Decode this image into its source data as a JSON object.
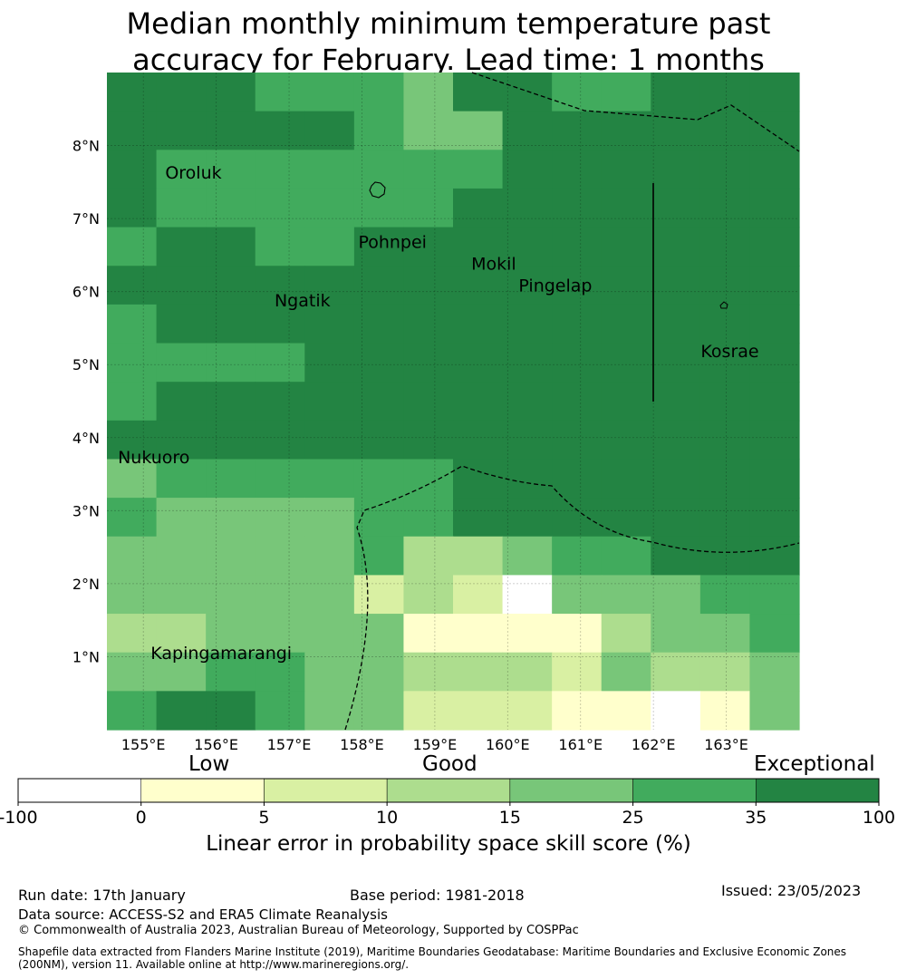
{
  "title": {
    "line1": "Median monthly minimum temperature past",
    "line2": "accuracy for February. Lead time: 1 months"
  },
  "map": {
    "lon_min": 154.5,
    "lon_max": 164.0,
    "lat_min": 0.0,
    "lat_max": 9.0,
    "lon_ticks": [
      {
        "v": 155,
        "label": "155°E"
      },
      {
        "v": 156,
        "label": "156°E"
      },
      {
        "v": 157,
        "label": "157°E"
      },
      {
        "v": 158,
        "label": "158°E"
      },
      {
        "v": 159,
        "label": "159°E"
      },
      {
        "v": 160,
        "label": "160°E"
      },
      {
        "v": 161,
        "label": "161°E"
      },
      {
        "v": 162,
        "label": "162°E"
      },
      {
        "v": 163,
        "label": "163°E"
      }
    ],
    "lat_ticks": [
      {
        "v": 1,
        "label": "1°N"
      },
      {
        "v": 2,
        "label": "2°N"
      },
      {
        "v": 3,
        "label": "3°N"
      },
      {
        "v": 4,
        "label": "4°N"
      },
      {
        "v": 5,
        "label": "5°N"
      },
      {
        "v": 6,
        "label": "6°N"
      },
      {
        "v": 7,
        "label": "7°N"
      },
      {
        "v": 8,
        "label": "8°N"
      }
    ],
    "skill_grid_legend": "codes: 0=-100..0, 1=0..5, 2=5..10, 3=10..15, 4=15..25, 5=25..35, 6=35..100",
    "skill_grid": [
      "66655546655666",
      "66666544666666",
      "65555555666666",
      "65555556666666",
      "56655666666666",
      "66666666666666",
      "56666666666666",
      "55556666666666",
      "56666666666666",
      "66666666666666",
      "45555556666666",
      "54444556666666",
      "44444533455666",
      "44444232044455",
      "33444411113445",
      "44554433324334",
      "56654422211014"
    ],
    "place_names": [
      {
        "name": "Oroluk",
        "lon": 155.3,
        "lat": 7.55
      },
      {
        "name": "Pohnpei",
        "lon": 157.95,
        "lat": 6.6
      },
      {
        "name": "Mokil",
        "lon": 159.5,
        "lat": 6.3
      },
      {
        "name": "Pingelap",
        "lon": 160.15,
        "lat": 6.0
      },
      {
        "name": "Ngatik",
        "lon": 156.8,
        "lat": 5.8
      },
      {
        "name": "Kosrae",
        "lon": 162.65,
        "lat": 5.1
      },
      {
        "name": "Nukuoro",
        "lon": 154.65,
        "lat": 3.65
      },
      {
        "name": "Kapingamarangi",
        "lon": 155.1,
        "lat": 0.97
      }
    ]
  },
  "colorbar": {
    "headings": {
      "low": "Low",
      "good": "Good",
      "exceptional": "Exceptional"
    },
    "tick_labels": [
      "-100",
      "0",
      "5",
      "10",
      "15",
      "25",
      "35",
      "100"
    ],
    "colors": [
      "#ffffff",
      "#ffffcc",
      "#d9f0a3",
      "#addd8e",
      "#78c679",
      "#41ab5d",
      "#238443"
    ],
    "label": "Linear error in probability space skill score (%)"
  },
  "footer": {
    "run_date": "Run date: 17th January",
    "base_period": "Base period: 1981-2018",
    "issued": "Issued: 23/05/2023",
    "data_source": "Data source: ACCESS-S2 and ERA5 Climate Reanalysis",
    "copyright": "© Commonwealth of Australia 2023, Australian Bureau of Meteorology, Supported by COSPPac",
    "shapefile_line1": "Shapefile data extracted from Flanders Marine Institute (2019), Maritime Boundaries Geodatabase: Maritime Boundaries and Exclusive Economic Zones",
    "shapefile_line2": "(200NM), version 11. Available online at http://www.marineregions.org/."
  }
}
